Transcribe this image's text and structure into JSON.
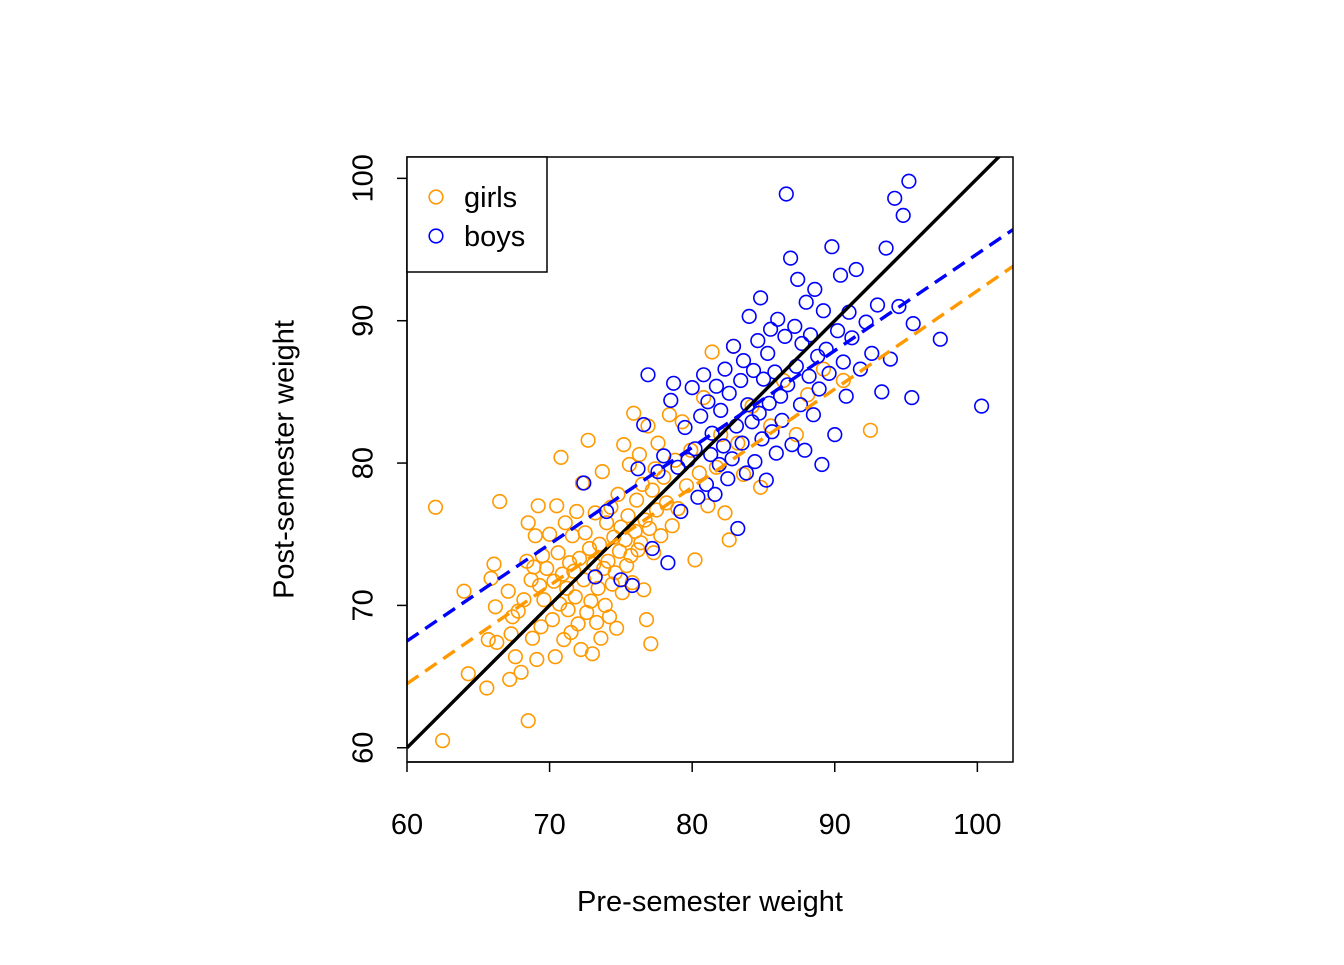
{
  "chart_data": {
    "type": "scatter",
    "title": "",
    "xlabel": "Pre-semester weight",
    "ylabel": "Post-semester weight",
    "xlim": [
      60,
      102.5
    ],
    "ylim": [
      59,
      101.5
    ],
    "xticks": [
      60,
      70,
      80,
      90,
      100
    ],
    "yticks": [
      60,
      70,
      80,
      90,
      100
    ],
    "legend_position": "top-left",
    "grid": false,
    "series": [
      {
        "name": "girls",
        "color": "#FF9900",
        "marker": "open-circle",
        "points": [
          [
            62.0,
            76.9
          ],
          [
            62.5,
            60.5
          ],
          [
            64.0,
            71.0
          ],
          [
            64.3,
            65.2
          ],
          [
            65.6,
            64.2
          ],
          [
            65.7,
            67.6
          ],
          [
            65.9,
            71.9
          ],
          [
            66.1,
            72.9
          ],
          [
            66.2,
            69.9
          ],
          [
            66.3,
            67.4
          ],
          [
            66.5,
            77.3
          ],
          [
            67.1,
            71.0
          ],
          [
            67.2,
            64.8
          ],
          [
            67.3,
            68.0
          ],
          [
            67.4,
            69.2
          ],
          [
            67.6,
            66.4
          ],
          [
            67.8,
            69.6
          ],
          [
            68.0,
            65.3
          ],
          [
            68.2,
            70.4
          ],
          [
            68.4,
            73.1
          ],
          [
            68.5,
            75.8
          ],
          [
            68.5,
            61.9
          ],
          [
            68.7,
            71.8
          ],
          [
            68.8,
            67.7
          ],
          [
            68.9,
            72.7
          ],
          [
            69.0,
            74.9
          ],
          [
            69.1,
            66.2
          ],
          [
            69.2,
            77.0
          ],
          [
            69.3,
            71.4
          ],
          [
            69.4,
            68.5
          ],
          [
            69.5,
            73.5
          ],
          [
            69.6,
            70.4
          ],
          [
            69.8,
            72.6
          ],
          [
            70.0,
            75.0
          ],
          [
            70.2,
            69.0
          ],
          [
            70.3,
            71.7
          ],
          [
            70.4,
            66.4
          ],
          [
            70.5,
            77.0
          ],
          [
            70.6,
            73.7
          ],
          [
            70.7,
            70.1
          ],
          [
            70.8,
            80.4
          ],
          [
            70.9,
            72.2
          ],
          [
            71.0,
            67.6
          ],
          [
            71.1,
            75.8
          ],
          [
            71.2,
            71.2
          ],
          [
            71.3,
            69.7
          ],
          [
            71.4,
            73.0
          ],
          [
            71.5,
            68.1
          ],
          [
            71.6,
            74.9
          ],
          [
            71.7,
            72.4
          ],
          [
            71.8,
            70.6
          ],
          [
            71.9,
            76.6
          ],
          [
            72.0,
            68.7
          ],
          [
            72.1,
            73.3
          ],
          [
            72.2,
            66.9
          ],
          [
            72.3,
            78.6
          ],
          [
            72.4,
            71.8
          ],
          [
            72.5,
            75.1
          ],
          [
            72.6,
            69.5
          ],
          [
            72.7,
            81.6
          ],
          [
            72.8,
            74.0
          ],
          [
            72.9,
            70.3
          ],
          [
            73.0,
            66.6
          ],
          [
            73.1,
            72.9
          ],
          [
            73.2,
            76.5
          ],
          [
            73.3,
            68.8
          ],
          [
            73.4,
            71.2
          ],
          [
            73.5,
            74.3
          ],
          [
            73.6,
            67.7
          ],
          [
            73.7,
            79.4
          ],
          [
            73.8,
            72.6
          ],
          [
            73.9,
            70.0
          ],
          [
            74.0,
            75.8
          ],
          [
            74.1,
            73.1
          ],
          [
            74.2,
            69.2
          ],
          [
            74.3,
            76.9
          ],
          [
            74.4,
            71.5
          ],
          [
            74.5,
            74.8
          ],
          [
            74.6,
            72.3
          ],
          [
            74.7,
            68.4
          ],
          [
            74.8,
            77.8
          ],
          [
            74.9,
            73.8
          ],
          [
            75.0,
            75.5
          ],
          [
            75.1,
            70.9
          ],
          [
            75.2,
            81.3
          ],
          [
            75.3,
            74.6
          ],
          [
            75.4,
            72.8
          ],
          [
            75.5,
            76.3
          ],
          [
            75.6,
            79.9
          ],
          [
            75.7,
            73.5
          ],
          [
            75.8,
            71.6
          ],
          [
            75.9,
            83.5
          ],
          [
            76.0,
            75.2
          ],
          [
            76.1,
            77.4
          ],
          [
            76.2,
            73.9
          ],
          [
            76.3,
            80.6
          ],
          [
            76.4,
            74.4
          ],
          [
            76.5,
            78.5
          ],
          [
            76.6,
            71.1
          ],
          [
            76.7,
            76.0
          ],
          [
            76.8,
            69.0
          ],
          [
            76.9,
            82.6
          ],
          [
            77.0,
            75.4
          ],
          [
            77.1,
            67.3
          ],
          [
            77.2,
            78.1
          ],
          [
            77.3,
            73.7
          ],
          [
            77.4,
            79.6
          ],
          [
            77.5,
            76.7
          ],
          [
            77.6,
            81.4
          ],
          [
            77.8,
            74.9
          ],
          [
            78.0,
            79.0
          ],
          [
            78.2,
            77.2
          ],
          [
            78.4,
            83.4
          ],
          [
            78.6,
            75.6
          ],
          [
            78.8,
            80.2
          ],
          [
            79.0,
            76.8
          ],
          [
            79.3,
            82.9
          ],
          [
            79.6,
            78.4
          ],
          [
            79.9,
            80.9
          ],
          [
            80.2,
            73.2
          ],
          [
            80.5,
            79.3
          ],
          [
            80.8,
            84.6
          ],
          [
            81.1,
            77.0
          ],
          [
            81.4,
            87.8
          ],
          [
            81.7,
            79.7
          ],
          [
            82.0,
            82.0
          ],
          [
            82.3,
            76.5
          ],
          [
            82.6,
            74.6
          ],
          [
            82.9,
            88.2
          ],
          [
            83.2,
            81.4
          ],
          [
            83.6,
            79.2
          ],
          [
            84.2,
            84.0
          ],
          [
            84.8,
            78.3
          ],
          [
            85.5,
            82.6
          ],
          [
            86.4,
            85.8
          ],
          [
            87.3,
            82.0
          ],
          [
            88.1,
            84.8
          ],
          [
            89.2,
            86.6
          ],
          [
            90.6,
            85.8
          ],
          [
            92.5,
            82.3
          ]
        ]
      },
      {
        "name": "boys",
        "color": "#0000FF",
        "marker": "open-circle",
        "points": [
          [
            72.4,
            78.6
          ],
          [
            73.2,
            72.0
          ],
          [
            74.0,
            76.6
          ],
          [
            75.0,
            71.8
          ],
          [
            75.8,
            71.4
          ],
          [
            76.2,
            79.6
          ],
          [
            76.6,
            82.7
          ],
          [
            76.9,
            86.2
          ],
          [
            77.2,
            74.0
          ],
          [
            77.6,
            79.4
          ],
          [
            78.0,
            80.5
          ],
          [
            78.3,
            73.0
          ],
          [
            78.5,
            84.4
          ],
          [
            78.7,
            85.6
          ],
          [
            79.0,
            79.7
          ],
          [
            79.2,
            76.6
          ],
          [
            79.5,
            82.5
          ],
          [
            79.7,
            80.2
          ],
          [
            80.0,
            85.3
          ],
          [
            80.2,
            81.0
          ],
          [
            80.4,
            77.6
          ],
          [
            80.6,
            83.3
          ],
          [
            80.8,
            86.2
          ],
          [
            81.0,
            78.5
          ],
          [
            81.1,
            84.3
          ],
          [
            81.3,
            80.6
          ],
          [
            81.4,
            82.1
          ],
          [
            81.6,
            77.8
          ],
          [
            81.7,
            85.4
          ],
          [
            81.9,
            79.9
          ],
          [
            82.0,
            83.7
          ],
          [
            82.2,
            81.2
          ],
          [
            82.3,
            86.6
          ],
          [
            82.5,
            78.9
          ],
          [
            82.6,
            84.9
          ],
          [
            82.8,
            80.3
          ],
          [
            82.9,
            88.2
          ],
          [
            83.1,
            82.6
          ],
          [
            83.2,
            75.4
          ],
          [
            83.4,
            85.8
          ],
          [
            83.5,
            81.4
          ],
          [
            83.6,
            87.2
          ],
          [
            83.8,
            79.3
          ],
          [
            83.9,
            84.1
          ],
          [
            84.0,
            90.3
          ],
          [
            84.2,
            82.9
          ],
          [
            84.3,
            86.5
          ],
          [
            84.4,
            80.1
          ],
          [
            84.6,
            88.6
          ],
          [
            84.7,
            83.5
          ],
          [
            84.8,
            91.6
          ],
          [
            84.9,
            81.7
          ],
          [
            85.0,
            85.9
          ],
          [
            85.2,
            78.8
          ],
          [
            85.3,
            87.7
          ],
          [
            85.4,
            84.2
          ],
          [
            85.5,
            89.4
          ],
          [
            85.6,
            82.2
          ],
          [
            85.8,
            86.4
          ],
          [
            85.9,
            80.7
          ],
          [
            86.0,
            90.1
          ],
          [
            86.2,
            84.7
          ],
          [
            86.3,
            83.0
          ],
          [
            86.5,
            88.9
          ],
          [
            86.6,
            98.9
          ],
          [
            86.7,
            85.5
          ],
          [
            86.9,
            94.4
          ],
          [
            87.0,
            81.3
          ],
          [
            87.2,
            89.6
          ],
          [
            87.3,
            86.8
          ],
          [
            87.4,
            92.9
          ],
          [
            87.6,
            84.1
          ],
          [
            87.7,
            88.4
          ],
          [
            87.9,
            80.9
          ],
          [
            88.0,
            91.3
          ],
          [
            88.2,
            86.1
          ],
          [
            88.3,
            89.0
          ],
          [
            88.5,
            83.4
          ],
          [
            88.6,
            92.2
          ],
          [
            88.8,
            87.5
          ],
          [
            88.9,
            85.2
          ],
          [
            89.1,
            79.9
          ],
          [
            89.2,
            90.7
          ],
          [
            89.4,
            88.0
          ],
          [
            89.6,
            86.3
          ],
          [
            89.8,
            95.2
          ],
          [
            90.0,
            82.0
          ],
          [
            90.2,
            89.3
          ],
          [
            90.4,
            93.2
          ],
          [
            90.6,
            87.1
          ],
          [
            90.8,
            84.7
          ],
          [
            91.0,
            90.6
          ],
          [
            91.2,
            88.8
          ],
          [
            91.5,
            93.6
          ],
          [
            91.8,
            86.6
          ],
          [
            92.2,
            89.9
          ],
          [
            92.6,
            87.7
          ],
          [
            93.0,
            91.1
          ],
          [
            93.3,
            85.0
          ],
          [
            93.6,
            95.1
          ],
          [
            93.9,
            87.3
          ],
          [
            94.2,
            98.6
          ],
          [
            94.5,
            91.0
          ],
          [
            94.8,
            97.4
          ],
          [
            95.2,
            99.8
          ],
          [
            95.5,
            89.8
          ],
          [
            95.4,
            84.6
          ],
          [
            97.4,
            88.7
          ],
          [
            100.3,
            84.0
          ]
        ]
      }
    ],
    "lines": [
      {
        "label": "y = x",
        "color": "#000000",
        "style": "solid",
        "intercept": 0.0,
        "slope": 1.0
      },
      {
        "label": "girls fit",
        "color": "#FF9900",
        "style": "dashed",
        "intercept": 23.1,
        "slope": 0.69
      },
      {
        "label": "boys fit",
        "color": "#0000FF",
        "style": "dashed",
        "intercept": 26.7,
        "slope": 0.68
      }
    ]
  }
}
